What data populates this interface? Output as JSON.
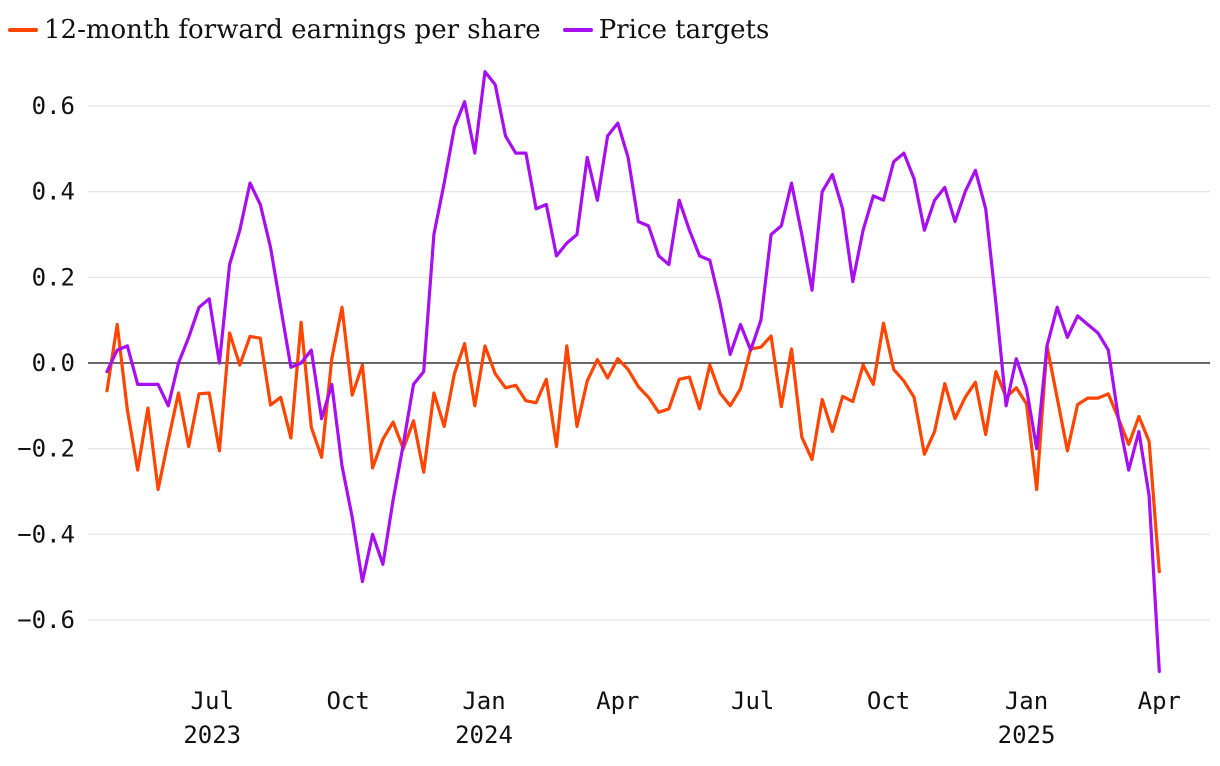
{
  "chart_data": {
    "type": "line",
    "title": "",
    "xlabel": "",
    "ylabel": "",
    "ylim": [
      -0.73,
      0.72
    ],
    "yticks": [
      0.6,
      0.4,
      0.2,
      0.0,
      -0.2,
      -0.4,
      -0.6
    ],
    "ytick_labels": [
      "0.6",
      "0.4",
      "0.2",
      "0.0",
      "−0.2",
      "−0.4",
      "−0.6"
    ],
    "xlim": [
      0,
      106
    ],
    "xticks": [
      {
        "x": 10.3,
        "label": "Jul",
        "year": "2023"
      },
      {
        "x": 23.6,
        "label": "Oct",
        "year": ""
      },
      {
        "x": 36.9,
        "label": "Jan",
        "year": "2024"
      },
      {
        "x": 50.0,
        "label": "Apr",
        "year": ""
      },
      {
        "x": 63.2,
        "label": "Jul",
        "year": ""
      },
      {
        "x": 76.5,
        "label": "Oct",
        "year": ""
      },
      {
        "x": 90.0,
        "label": "Jan",
        "year": "2025"
      },
      {
        "x": 103.0,
        "label": "Apr",
        "year": ""
      }
    ],
    "grid": true,
    "legend_position": "top-left",
    "series": [
      {
        "name": "12-month forward earnings per share",
        "color": "#ff4500",
        "values": [
          -0.065,
          0.09,
          -0.11,
          -0.25,
          -0.105,
          -0.295,
          -0.18,
          -0.07,
          -0.195,
          -0.072,
          -0.07,
          -0.205,
          0.07,
          -0.005,
          0.062,
          0.058,
          -0.098,
          -0.08,
          -0.175,
          0.095,
          -0.15,
          -0.22,
          0.01,
          0.13,
          -0.075,
          -0.005,
          -0.245,
          -0.178,
          -0.138,
          -0.2,
          -0.135,
          -0.255,
          -0.07,
          -0.148,
          -0.025,
          0.045,
          -0.1,
          0.04,
          -0.025,
          -0.058,
          -0.052,
          -0.088,
          -0.093,
          -0.038,
          -0.195,
          0.04,
          -0.148,
          -0.042,
          0.008,
          -0.035,
          0.01,
          -0.015,
          -0.055,
          -0.08,
          -0.115,
          -0.107,
          -0.038,
          -0.033,
          -0.107,
          -0.005,
          -0.07,
          -0.1,
          -0.06,
          0.033,
          0.037,
          0.063,
          -0.102,
          0.033,
          -0.173,
          -0.225,
          -0.085,
          -0.16,
          -0.078,
          -0.09,
          -0.005,
          -0.05,
          0.093,
          -0.015,
          -0.042,
          -0.08,
          -0.213,
          -0.16,
          -0.048,
          -0.13,
          -0.08,
          -0.045,
          -0.167,
          -0.02,
          -0.08,
          -0.058,
          -0.095,
          -0.295,
          0.04,
          -0.082,
          -0.205,
          -0.097,
          -0.082,
          -0.082,
          -0.072,
          -0.13,
          -0.19,
          -0.125,
          -0.183,
          -0.487
        ]
      },
      {
        "name": "Price targets",
        "color": "#a80ff0",
        "values": [
          -0.02,
          0.03,
          0.04,
          -0.05,
          -0.05,
          -0.05,
          -0.1,
          0.0,
          0.06,
          0.13,
          0.15,
          0.0,
          0.23,
          0.31,
          0.42,
          0.37,
          0.27,
          0.13,
          -0.01,
          0.0,
          0.03,
          -0.13,
          -0.05,
          -0.24,
          -0.36,
          -0.51,
          -0.4,
          -0.47,
          -0.32,
          -0.19,
          -0.05,
          -0.02,
          0.3,
          0.42,
          0.55,
          0.61,
          0.49,
          0.68,
          0.65,
          0.53,
          0.49,
          0.49,
          0.36,
          0.37,
          0.25,
          0.28,
          0.3,
          0.48,
          0.38,
          0.53,
          0.56,
          0.48,
          0.33,
          0.32,
          0.25,
          0.23,
          0.38,
          0.31,
          0.25,
          0.24,
          0.14,
          0.02,
          0.09,
          0.03,
          0.1,
          0.3,
          0.32,
          0.42,
          0.3,
          0.17,
          0.4,
          0.44,
          0.36,
          0.19,
          0.31,
          0.39,
          0.38,
          0.47,
          0.49,
          0.43,
          0.31,
          0.38,
          0.41,
          0.33,
          0.4,
          0.45,
          0.36,
          0.14,
          -0.1,
          0.01,
          -0.06,
          -0.2,
          0.04,
          0.13,
          0.06,
          0.11,
          0.09,
          0.07,
          0.03,
          -0.13,
          -0.25,
          -0.16,
          -0.31,
          -0.72
        ]
      }
    ]
  }
}
